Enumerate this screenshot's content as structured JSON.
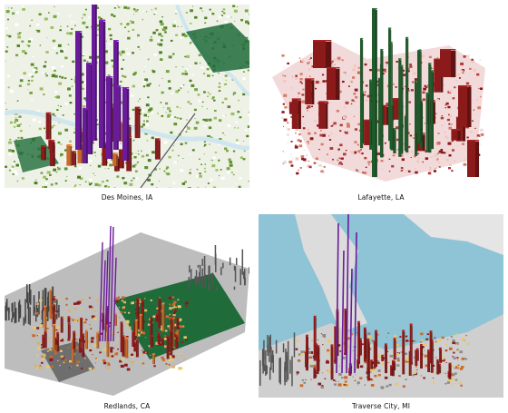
{
  "figure": {
    "panels": [
      {
        "caption": "Des Moines, IA"
      },
      {
        "caption": "Lafayette, LA"
      },
      {
        "caption": "Redlands, CA"
      },
      {
        "caption": "Traverse City, MI"
      }
    ]
  },
  "colors": {
    "tall_value": "#6a1b9a",
    "high_value": "#8b1a1a",
    "mid_value": "#c96a2b",
    "low_value": "#e6c96a",
    "vegetation": "#5f8f2e",
    "dense_vegetation": "#1f6b3a",
    "water": "#8fc3d6",
    "lafayette_spikes": "#1e5a2a",
    "background_terrain": "#bdbdbd"
  }
}
